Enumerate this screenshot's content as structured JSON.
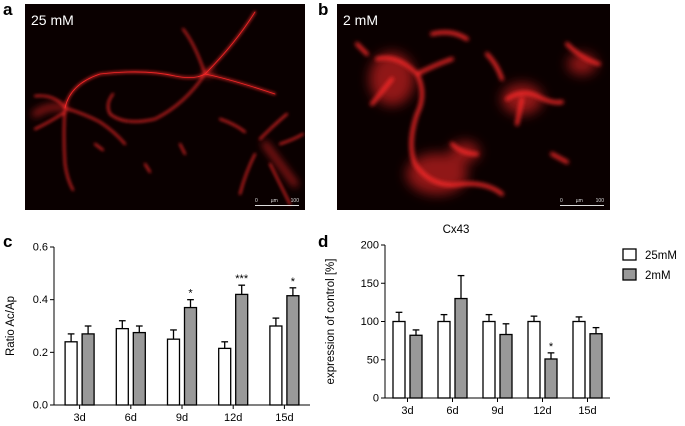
{
  "panels": {
    "a": {
      "letter": "a",
      "label": "25 mM",
      "scale": [
        "0",
        "µm",
        "100"
      ]
    },
    "b": {
      "letter": "b",
      "label": "2 mM",
      "scale": [
        "0",
        "µm",
        "100"
      ]
    },
    "c": {
      "letter": "c"
    },
    "d": {
      "letter": "d"
    }
  },
  "colors": {
    "series_25mM": "#ffffff",
    "series_2mM": "#999999",
    "stroke": "#000000",
    "cell_red": "#ff2a2a"
  },
  "chart_data": [
    {
      "type": "bar",
      "panel": "c",
      "title": "",
      "ylabel": "Ratio Ac/Ap",
      "xlabel": "",
      "categories": [
        "3d",
        "6d",
        "9d",
        "12d",
        "15d"
      ],
      "ylim": [
        0.0,
        0.6
      ],
      "yticks": [
        "0.0",
        "0.2",
        "0.4",
        "0.6"
      ],
      "ytick_values": [
        0.0,
        0.2,
        0.4,
        0.6
      ],
      "series": [
        {
          "values": [
            0.24,
            0.29,
            0.25,
            0.215,
            0.3
          ],
          "errors": [
            0.03,
            0.03,
            0.035,
            0.025,
            0.03
          ]
        },
        {
          "values": [
            0.27,
            0.275,
            0.37,
            0.42,
            0.415
          ],
          "errors": [
            0.03,
            0.025,
            0.03,
            0.035,
            0.03
          ]
        }
      ],
      "annotations": [
        {
          "category_index": 2,
          "series_index": 1,
          "text": "*"
        },
        {
          "category_index": 3,
          "series_index": 1,
          "text": "***"
        },
        {
          "category_index": 4,
          "series_index": 1,
          "text": "*"
        }
      ]
    },
    {
      "type": "bar",
      "panel": "d",
      "title": "Cx43",
      "ylabel": "expression of control [%]",
      "xlabel": "",
      "categories": [
        "3d",
        "6d",
        "9d",
        "12d",
        "15d"
      ],
      "ylim": [
        0,
        200
      ],
      "yticks": [
        "0",
        "50",
        "100",
        "150",
        "200"
      ],
      "ytick_values": [
        0,
        50,
        100,
        150,
        200
      ],
      "series": [
        {
          "name": "25mM",
          "values": [
            100,
            100,
            100,
            100,
            100
          ],
          "errors": [
            12,
            9,
            9,
            7,
            6
          ]
        },
        {
          "name": "2mM",
          "values": [
            82,
            130,
            83,
            51,
            84
          ],
          "errors": [
            7,
            30,
            14,
            8,
            8
          ]
        }
      ],
      "annotations": [
        {
          "category_index": 3,
          "series_index": 1,
          "text": "*"
        }
      ],
      "legend": "right"
    }
  ]
}
